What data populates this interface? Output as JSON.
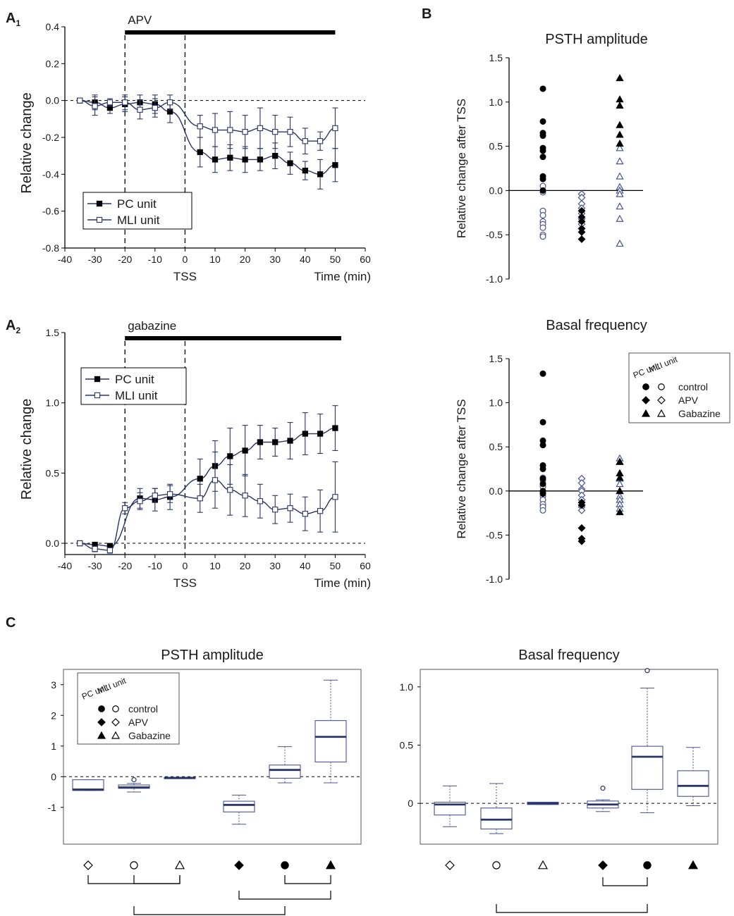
{
  "colors": {
    "ink": "#000000",
    "navy": "#2a3466",
    "outline": "#4a5490",
    "gray": "#555555"
  },
  "panels": {
    "A1": {
      "label": "A",
      "sub": "1"
    },
    "A2": {
      "label": "A",
      "sub": "2"
    },
    "B": {
      "label": "B"
    },
    "C": {
      "label": "C"
    }
  },
  "chart_data": [
    {
      "id": "A1",
      "type": "line",
      "xlabel": "Time (min)",
      "xmark": "TSS",
      "ylabel": "Relative change",
      "xlim": [
        -40,
        60
      ],
      "ylim": [
        -0.8,
        0.4
      ],
      "xticks": [
        -40,
        -30,
        -20,
        -10,
        0,
        10,
        20,
        30,
        40,
        50,
        60
      ],
      "xtick_labels": [
        "-40",
        "-30",
        "-20",
        "-10",
        "0",
        "10",
        "20",
        "30",
        "40",
        "50",
        "60"
      ],
      "yticks": [
        -0.8,
        -0.6,
        -0.4,
        -0.2,
        0,
        0.2,
        0.4
      ],
      "ytick_labels": [
        "-0.8",
        "-0.6",
        "-0.4",
        "-0.2",
        "0.0",
        "0.2",
        "0.4"
      ],
      "drug_bar": {
        "label": "APV",
        "start": -20,
        "end": 50
      },
      "vlines": [
        -20,
        0
      ],
      "hline": 0,
      "legend": [
        "PC unit",
        "MLI unit"
      ],
      "series": [
        {
          "name": "PC unit",
          "x": [
            -35,
            -30,
            -25,
            -20,
            -15,
            -10,
            -5,
            5,
            10,
            15,
            20,
            25,
            30,
            35,
            40,
            45,
            50
          ],
          "y": [
            0,
            -0.01,
            -0.04,
            -0.02,
            -0.01,
            -0.02,
            -0.06,
            -0.28,
            -0.32,
            -0.31,
            -0.32,
            -0.32,
            -0.3,
            -0.34,
            -0.38,
            -0.4,
            -0.35
          ],
          "err": [
            0,
            0.04,
            0.03,
            0.04,
            0.04,
            0.05,
            0.06,
            0.08,
            0.07,
            0.07,
            0.07,
            0.06,
            0.07,
            0.06,
            0.05,
            0.08,
            0.09
          ]
        },
        {
          "name": "MLI unit",
          "x": [
            -35,
            -30,
            -25,
            -20,
            -15,
            -10,
            -5,
            5,
            10,
            15,
            20,
            25,
            30,
            35,
            40,
            45,
            50
          ],
          "y": [
            0,
            -0.03,
            -0.01,
            -0.01,
            -0.05,
            -0.04,
            -0.01,
            -0.14,
            -0.16,
            -0.16,
            -0.17,
            -0.15,
            -0.17,
            -0.17,
            -0.22,
            -0.22,
            -0.15
          ],
          "err": [
            0,
            0.05,
            0.02,
            0.04,
            0.05,
            0.05,
            0.04,
            0.06,
            0.09,
            0.1,
            0.09,
            0.11,
            0.09,
            0.08,
            0.07,
            0.05,
            0.11
          ]
        }
      ]
    },
    {
      "id": "A2",
      "type": "line",
      "xlabel": "Time (min)",
      "xmark": "TSS",
      "ylabel": "Relative change",
      "xlim": [
        -40,
        60
      ],
      "ylim": [
        -0.08,
        1.5
      ],
      "xticks": [
        -40,
        -30,
        -20,
        -10,
        0,
        10,
        20,
        30,
        40,
        50,
        60
      ],
      "xtick_labels": [
        "-40",
        "-30",
        "-20",
        "-10",
        "0",
        "10",
        "20",
        "30",
        "40",
        "50",
        "60"
      ],
      "yticks": [
        0,
        0.5,
        1.0,
        1.5
      ],
      "ytick_labels": [
        "0.0",
        "0.5",
        "1.0",
        "1.5"
      ],
      "drug_bar": {
        "label": "gabazine",
        "start": -20,
        "end": 52
      },
      "vlines": [
        -20,
        0
      ],
      "hline": 0,
      "legend": [
        "PC unit",
        "MLI unit"
      ],
      "series": [
        {
          "name": "PC unit",
          "x": [
            -35,
            -30,
            -25,
            -15,
            -10,
            -5,
            5,
            10,
            15,
            20,
            25,
            30,
            35,
            40,
            45,
            50
          ],
          "y": [
            0,
            -0.01,
            -0.02,
            0.32,
            0.31,
            0.33,
            0.46,
            0.55,
            0.62,
            0.66,
            0.72,
            0.72,
            0.73,
            0.78,
            0.78,
            0.82
          ],
          "err": [
            0,
            0.01,
            0.02,
            0.07,
            0.08,
            0.09,
            0.14,
            0.18,
            0.2,
            0.18,
            0.12,
            0.1,
            0.13,
            0.15,
            0.14,
            0.16
          ]
        },
        {
          "name": "MLI unit",
          "x": [
            -35,
            -30,
            -25,
            -20,
            -15,
            -10,
            -5,
            5,
            10,
            15,
            20,
            25,
            30,
            35,
            40,
            45,
            50
          ],
          "y": [
            0,
            -0.04,
            -0.05,
            0.25,
            0.3,
            0.34,
            0.35,
            0.32,
            0.45,
            0.38,
            0.34,
            0.3,
            0.24,
            0.25,
            0.21,
            0.23,
            0.33
          ],
          "err": [
            0,
            0.02,
            0.02,
            0.04,
            0.06,
            0.05,
            0.06,
            0.1,
            0.2,
            0.18,
            0.15,
            0.12,
            0.1,
            0.1,
            0.12,
            0.15,
            0.25
          ]
        }
      ]
    },
    {
      "id": "B1",
      "type": "scatter",
      "title": "PSTH amplitude",
      "ylabel": "Relative change after TSS",
      "ylim": [
        -1.0,
        1.5
      ],
      "yticks": [
        -1.0,
        -0.5,
        0,
        0.5,
        1.0,
        1.5
      ],
      "ytick_labels": [
        "-1.0",
        "-0.5",
        "0.0",
        "0.5",
        "1.0",
        "1.5"
      ],
      "groups": [
        {
          "name": "control",
          "pc": [
            1.15,
            0.78,
            0.65,
            0.62,
            0.48,
            0.45,
            0.38,
            0.16,
            0.13,
            0.0
          ],
          "mli": [
            0.05,
            -0.02,
            -0.23,
            -0.28,
            -0.35,
            -0.38,
            -0.42,
            -0.5,
            -0.52
          ]
        },
        {
          "name": "APV",
          "pc": [
            -0.23,
            -0.3,
            -0.35,
            -0.43,
            -0.47,
            -0.55
          ],
          "mli": [
            -0.04,
            -0.08,
            -0.15,
            -0.2,
            -0.26,
            -0.32,
            -0.38
          ]
        },
        {
          "name": "Gabazine",
          "pc": [
            1.27,
            1.03,
            0.96,
            0.74,
            0.63,
            0.53
          ],
          "mli": [
            0.48,
            0.33,
            0.16,
            0.04,
            0.0,
            -0.04,
            -0.18,
            -0.32,
            -0.6
          ]
        }
      ]
    },
    {
      "id": "B2",
      "type": "scatter",
      "title": "Basal frequency",
      "ylabel": "Relative change after TSS",
      "ylim": [
        -1.0,
        1.5
      ],
      "yticks": [
        -1.0,
        -0.5,
        0,
        0.5,
        1.0,
        1.5
      ],
      "ytick_labels": [
        "-1.0",
        "-0.5",
        "0.0",
        "0.5",
        "1.0",
        "1.5"
      ],
      "legend": {
        "col_headers": [
          "PC unit",
          "MLI unit"
        ],
        "entries": [
          "control",
          "APV",
          "Gabazine"
        ]
      },
      "groups": [
        {
          "name": "control",
          "pc": [
            1.33,
            0.78,
            0.57,
            0.52,
            0.29,
            0.25,
            0.14,
            0.08,
            0.0,
            -0.03
          ],
          "mli": [
            0.15,
            0.12,
            0.05,
            -0.02,
            -0.06,
            -0.1,
            -0.15,
            -0.18,
            -0.22
          ]
        },
        {
          "name": "APV",
          "pc": [
            -0.13,
            -0.16,
            -0.42,
            -0.54,
            -0.57
          ],
          "mli": [
            0.14,
            0.09,
            0.02,
            0.0,
            -0.05,
            -0.1,
            -0.18,
            -0.22
          ]
        },
        {
          "name": "Gabazine",
          "pc": [
            0.33,
            0.2,
            0.15,
            0.0,
            -0.24
          ],
          "mli": [
            0.37,
            0.33,
            0.2,
            0.14,
            0.08,
            0.0,
            -0.06,
            -0.1,
            -0.15,
            -0.2
          ]
        }
      ]
    },
    {
      "id": "C1",
      "type": "box",
      "title": "PSTH amplitude",
      "ylim": [
        -2.2,
        3.5
      ],
      "yticks": [
        -1,
        0,
        1,
        2,
        3
      ],
      "ytick_labels": [
        "-1",
        "0",
        "1",
        "2",
        "3"
      ],
      "legend": {
        "col_headers": [
          "PC unit",
          "MLI unit"
        ],
        "entries": [
          "control",
          "APV",
          "Gabazine"
        ]
      },
      "boxes": [
        {
          "cat": "APV MLI",
          "marker": "diamond-open",
          "whislo": -0.45,
          "q1": -0.45,
          "med": -0.42,
          "q3": -0.1,
          "whishi": -0.1,
          "fliers": []
        },
        {
          "cat": "control MLI",
          "marker": "circle-open",
          "whislo": -0.5,
          "q1": -0.38,
          "med": -0.35,
          "q3": -0.27,
          "whishi": -0.22,
          "fliers": [
            -0.1
          ]
        },
        {
          "cat": "Gabazine MLI",
          "marker": "triangle-open",
          "whislo": -0.06,
          "q1": -0.06,
          "med": -0.04,
          "q3": -0.02,
          "whishi": -0.02,
          "fliers": []
        },
        {
          "cat": "APV PC",
          "marker": "diamond-filled",
          "whislo": -1.55,
          "q1": -1.15,
          "med": -0.92,
          "q3": -0.8,
          "whishi": -0.6,
          "fliers": []
        },
        {
          "cat": "control PC",
          "marker": "circle-filled",
          "whislo": -0.2,
          "q1": -0.05,
          "med": 0.22,
          "q3": 0.38,
          "whishi": 0.98,
          "fliers": []
        },
        {
          "cat": "Gabazine PC",
          "marker": "triangle-filled",
          "whislo": -0.2,
          "q1": 0.48,
          "med": 1.3,
          "q3": 1.83,
          "whishi": 3.15,
          "fliers": []
        }
      ],
      "brackets": [
        [
          2,
          3
        ],
        [
          1,
          3
        ],
        [
          5,
          6
        ],
        [
          4,
          6
        ],
        [
          2,
          5
        ]
      ]
    },
    {
      "id": "C2",
      "type": "box",
      "title": "Basal frequency",
      "ylim": [
        -0.35,
        1.15
      ],
      "yticks": [
        0,
        0.5,
        1.0
      ],
      "ytick_labels": [
        "0",
        "0.5",
        "1.0"
      ],
      "boxes": [
        {
          "cat": "APV MLI",
          "marker": "diamond-open",
          "whislo": -0.2,
          "q1": -0.1,
          "med": -0.01,
          "q3": 0.01,
          "whishi": 0.15,
          "fliers": []
        },
        {
          "cat": "control MLI",
          "marker": "circle-open",
          "whislo": -0.26,
          "q1": -0.22,
          "med": -0.14,
          "q3": -0.04,
          "whishi": 0.17,
          "fliers": []
        },
        {
          "cat": "Gabazine MLI",
          "marker": "triangle-open",
          "whislo": -0.01,
          "q1": -0.01,
          "med": 0.0,
          "q3": 0.01,
          "whishi": 0.01,
          "fliers": []
        },
        {
          "cat": "APV PC",
          "marker": "diamond-filled",
          "whislo": -0.07,
          "q1": -0.04,
          "med": -0.01,
          "q3": 0.02,
          "whishi": 0.03,
          "fliers": [
            0.13
          ]
        },
        {
          "cat": "control PC",
          "marker": "circle-filled",
          "whislo": -0.08,
          "q1": 0.12,
          "med": 0.4,
          "q3": 0.49,
          "whishi": 0.99,
          "fliers": [
            1.14
          ]
        },
        {
          "cat": "Gabazine PC",
          "marker": "triangle-filled",
          "whislo": -0.02,
          "q1": 0.06,
          "med": 0.15,
          "q3": 0.28,
          "whishi": 0.48,
          "fliers": []
        }
      ],
      "brackets": [
        [
          4,
          5
        ],
        [
          2,
          5
        ]
      ]
    }
  ]
}
